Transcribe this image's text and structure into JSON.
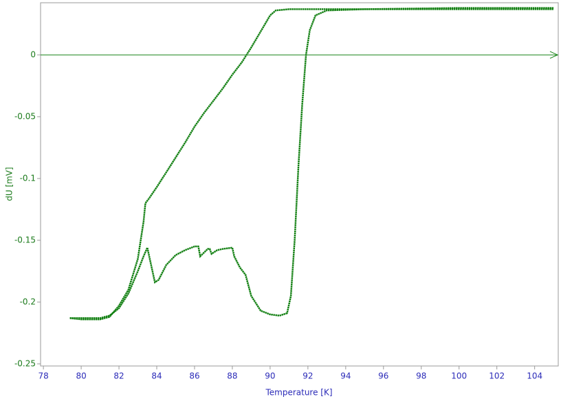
{
  "chart_data": {
    "type": "line",
    "xlabel": "Temperature [K]",
    "ylabel": "dU [mV]",
    "xlim": [
      77.85,
      105.25
    ],
    "ylim": [
      -0.2517,
      0.0422
    ],
    "xticks": [
      78,
      80,
      82,
      84,
      86,
      88,
      90,
      92,
      94,
      96,
      98,
      100,
      102,
      104
    ],
    "yticks": [
      0,
      -0.05,
      -0.1,
      -0.15,
      -0.2,
      -0.25
    ],
    "zero_line": true,
    "series": [
      {
        "color": "#138013",
        "x": [
          79.4,
          80,
          81,
          81.5,
          82,
          82.5,
          83,
          83.3,
          83.5,
          83.7,
          83.9,
          84.1,
          84.5,
          85,
          85.5,
          86,
          86.2,
          86.3,
          86.5,
          86.7,
          86.8,
          86.9,
          87.2,
          87.5,
          88,
          88.1,
          88.4,
          88.7,
          89,
          89.5,
          90,
          90.5,
          90.9,
          91.1,
          91.3,
          91.5,
          91.7,
          91.9,
          92.1,
          92.4,
          93,
          95,
          100,
          105
        ],
        "values": [
          -0.213,
          -0.213,
          -0.213,
          -0.211,
          -0.205,
          -0.193,
          -0.175,
          -0.163,
          -0.156,
          -0.17,
          -0.184,
          -0.182,
          -0.17,
          -0.162,
          -0.158,
          -0.155,
          -0.155,
          -0.163,
          -0.16,
          -0.157,
          -0.157,
          -0.161,
          -0.158,
          -0.157,
          -0.156,
          -0.163,
          -0.172,
          -0.178,
          -0.195,
          -0.207,
          -0.21,
          -0.211,
          -0.209,
          -0.195,
          -0.15,
          -0.09,
          -0.04,
          0,
          0.02,
          0.032,
          0.036,
          0.037,
          0.037,
          0.037
        ]
      },
      {
        "color": "#138013",
        "x": [
          79.4,
          80,
          81,
          81.5,
          82,
          82.5,
          83,
          83.3,
          83.4,
          83.6,
          84,
          84.5,
          85,
          85.5,
          86,
          86.5,
          87,
          87.5,
          88,
          88.5,
          89,
          89.5,
          90,
          90.3,
          91,
          92,
          95,
          100,
          105
        ],
        "values": [
          -0.213,
          -0.214,
          -0.214,
          -0.212,
          -0.203,
          -0.19,
          -0.165,
          -0.135,
          -0.12,
          -0.116,
          -0.107,
          -0.095,
          -0.083,
          -0.071,
          -0.058,
          -0.047,
          -0.037,
          -0.027,
          -0.016,
          -0.006,
          0.006,
          0.019,
          0.032,
          0.036,
          0.037,
          0.037,
          0.037,
          0.038,
          0.038
        ]
      }
    ]
  }
}
